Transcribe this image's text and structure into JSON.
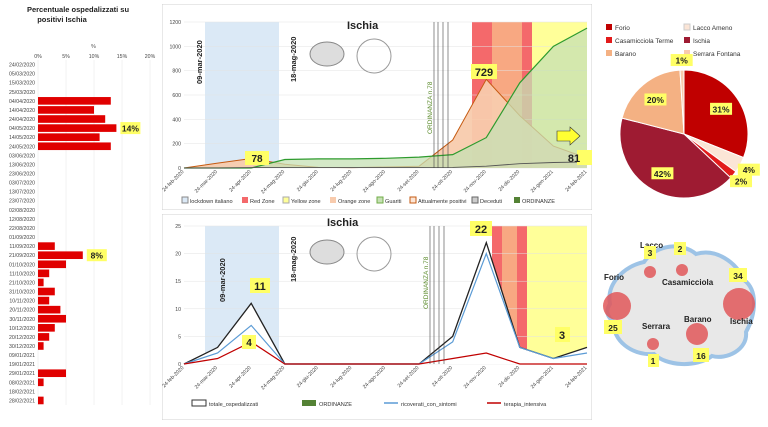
{
  "charts": {
    "left": {
      "title_line1": "Percentuale ospedalizzati su",
      "title_line2": "positivi Ischia",
      "axis_pct_symbol": "%",
      "ticks": [
        "0%",
        "5%",
        "10%",
        "15%",
        "20%"
      ],
      "dates": [
        "24/02/2020",
        "05/03/2020",
        "15/03/2020",
        "25/03/2020",
        "04/04/2020",
        "14/04/2020",
        "24/04/2020",
        "04/05/2020",
        "14/05/2020",
        "24/05/2020",
        "03/06/2020",
        "13/06/2020",
        "23/06/2020",
        "03/07/2020",
        "13/07/2020",
        "23/07/2020",
        "02/08/2020",
        "12/08/2020",
        "22/08/2020",
        "01/09/2020",
        "11/09/2020",
        "21/09/2020",
        "01/10/2020",
        "11/10/2020",
        "21/10/2020",
        "31/10/2020",
        "10/11/2020",
        "20/11/2020",
        "30/11/2020",
        "10/12/2020",
        "20/12/2020",
        "30/12/2020",
        "09/01/2021",
        "19/01/2021",
        "29/01/2021",
        "08/02/2021",
        "18/02/2021",
        "28/02/2021"
      ],
      "callouts": [
        {
          "label": "14%",
          "row": 7
        },
        {
          "label": "8%",
          "row": 21
        }
      ]
    },
    "top": {
      "title": "Ischia",
      "y_ticks": [
        "0",
        "200",
        "400",
        "600",
        "800",
        "1000",
        "1200"
      ],
      "x_ticks": [
        "24-feb-2020",
        "24-mar-2020",
        "24-apr-2020",
        "24-mag-2020",
        "24-giu-2020",
        "24-lug-2020",
        "24-ago-2020",
        "24-set-2020",
        "24-ott-2020",
        "24-nov-2020",
        "24-dic-2020",
        "24-gen-2021",
        "24-feb-2021"
      ],
      "annotations": {
        "lockdown_start": "09-mar-2020",
        "lockdown_end": "18-mag-2020",
        "ordinanza": "ORDINANZA n.78"
      },
      "badges": [
        "78",
        "729",
        "81"
      ],
      "legend": [
        "lockdown italiano",
        "Red Zone",
        "Yellow zone",
        "Orange zone",
        "Guariti",
        "Attualmente positivi",
        "Deceduti",
        "ORDINANZE"
      ]
    },
    "bottom": {
      "title": "Ischia",
      "y_ticks": [
        "0",
        "5",
        "10",
        "15",
        "20",
        "25"
      ],
      "x_ticks": [
        "24-feb-2020",
        "24-mar-2020",
        "24-apr-2020",
        "24-mag-2020",
        "24-giu-2020",
        "24-lug-2020",
        "24-ago-2020",
        "24-set-2020",
        "24-ott-2020",
        "24-nov-2020",
        "24-dic-2020",
        "24-gen-2021",
        "24-feb-2021"
      ],
      "annotations": {
        "lockdown_start": "09-mar-2020",
        "lockdown_end": "18-mag-2020",
        "ordinanza": "ORDINANZA n.78"
      },
      "badges": [
        "11",
        "4",
        "22",
        "3"
      ],
      "legend": [
        "totale_ospedalizzati",
        "ORDINANZE",
        "ricoverati_con_sintomi",
        "terapia_intensiva"
      ]
    },
    "pie": {
      "legend": [
        "Forio",
        "Lacco Ameno",
        "Casamicciola Terme",
        "Ischia",
        "Barano",
        "Serrara Fontana"
      ],
      "labels": [
        "31%",
        "4%",
        "2%",
        "42%",
        "20%",
        "1%"
      ]
    },
    "map": {
      "towns": [
        "Lacco",
        "Forio",
        "Casamicciola",
        "Serrara",
        "Barano",
        "Ischia"
      ],
      "values": [
        "3",
        "2",
        "34",
        "25",
        "16",
        "1"
      ]
    }
  },
  "colors": {
    "red": "#c00000",
    "lightblue": "#dbe9f6",
    "green": "#92d050",
    "orange": "#f8cbad",
    "yellow": "#ffff00",
    "gold": "#ffff66"
  },
  "chart_data": [
    {
      "type": "bar",
      "title": "Percentuale ospedalizzati su positivi Ischia",
      "categories": [
        "24/02/2020",
        "05/03/2020",
        "15/03/2020",
        "25/03/2020",
        "04/04/2020",
        "14/04/2020",
        "24/04/2020",
        "04/05/2020",
        "14/05/2020",
        "24/05/2020",
        "03/06/2020",
        "13/06/2020",
        "23/06/2020",
        "03/07/2020",
        "13/07/2020",
        "23/07/2020",
        "02/08/2020",
        "12/08/2020",
        "22/08/2020",
        "01/09/2020",
        "11/09/2020",
        "21/09/2020",
        "01/10/2020",
        "11/10/2020",
        "21/10/2020",
        "31/10/2020",
        "10/11/2020",
        "20/11/2020",
        "30/11/2020",
        "10/12/2020",
        "20/12/2020",
        "30/12/2020",
        "09/01/2021",
        "19/01/2021",
        "29/01/2021",
        "08/02/2021",
        "18/02/2021",
        "28/02/2021"
      ],
      "values": [
        0,
        0,
        0,
        0,
        13,
        10,
        12,
        14,
        11,
        13,
        0,
        0,
        0,
        0,
        0,
        0,
        0,
        0,
        0,
        0,
        3,
        8,
        5,
        2,
        1,
        3,
        2,
        4,
        5,
        3,
        2,
        1,
        0,
        0,
        5,
        1,
        0,
        1
      ],
      "xlim": [
        0,
        20
      ],
      "xlabel": "%"
    },
    {
      "type": "area",
      "title": "Ischia",
      "x": [
        "24-feb-2020",
        "24-mar-2020",
        "24-apr-2020",
        "24-mag-2020",
        "24-giu-2020",
        "24-lug-2020",
        "24-ago-2020",
        "24-set-2020",
        "24-ott-2020",
        "24-nov-2020",
        "24-dic-2020",
        "24-gen-2021",
        "24-feb-2021"
      ],
      "series": [
        {
          "name": "Attualmente positivi",
          "values": [
            0,
            40,
            78,
            30,
            5,
            3,
            8,
            15,
            230,
            729,
            430,
            180,
            81
          ]
        },
        {
          "name": "Guariti",
          "values": [
            0,
            0,
            0,
            70,
            75,
            75,
            80,
            90,
            110,
            250,
            700,
            1000,
            1150
          ]
        },
        {
          "name": "Deceduti",
          "values": [
            0,
            0,
            3,
            3,
            3,
            3,
            3,
            3,
            5,
            15,
            35,
            45,
            50
          ]
        }
      ],
      "ylim": [
        0,
        1200
      ]
    },
    {
      "type": "line",
      "title": "Ischia",
      "x": [
        "24-feb-2020",
        "24-mar-2020",
        "24-apr-2020",
        "24-mag-2020",
        "24-giu-2020",
        "24-lug-2020",
        "24-ago-2020",
        "24-set-2020",
        "24-ott-2020",
        "24-nov-2020",
        "24-dic-2020",
        "24-gen-2021",
        "24-feb-2021"
      ],
      "series": [
        {
          "name": "totale_ospedalizzati",
          "values": [
            0,
            3,
            11,
            0,
            0,
            0,
            0,
            0,
            5,
            22,
            3,
            1,
            3
          ]
        },
        {
          "name": "ricoverati_con_sintomi",
          "values": [
            0,
            2,
            7,
            0,
            0,
            0,
            0,
            0,
            4,
            20,
            3,
            1,
            2
          ]
        },
        {
          "name": "terapia_intensiva",
          "values": [
            0,
            1,
            4,
            0,
            0,
            0,
            0,
            0,
            1,
            2,
            0,
            0,
            0
          ]
        }
      ],
      "ylim": [
        0,
        25
      ]
    },
    {
      "type": "pie",
      "categories": [
        "Forio",
        "Lacco Ameno",
        "Casamicciola Terme",
        "Ischia",
        "Barano",
        "Serrara Fontana"
      ],
      "values": [
        31,
        4,
        2,
        42,
        20,
        1
      ]
    }
  ]
}
